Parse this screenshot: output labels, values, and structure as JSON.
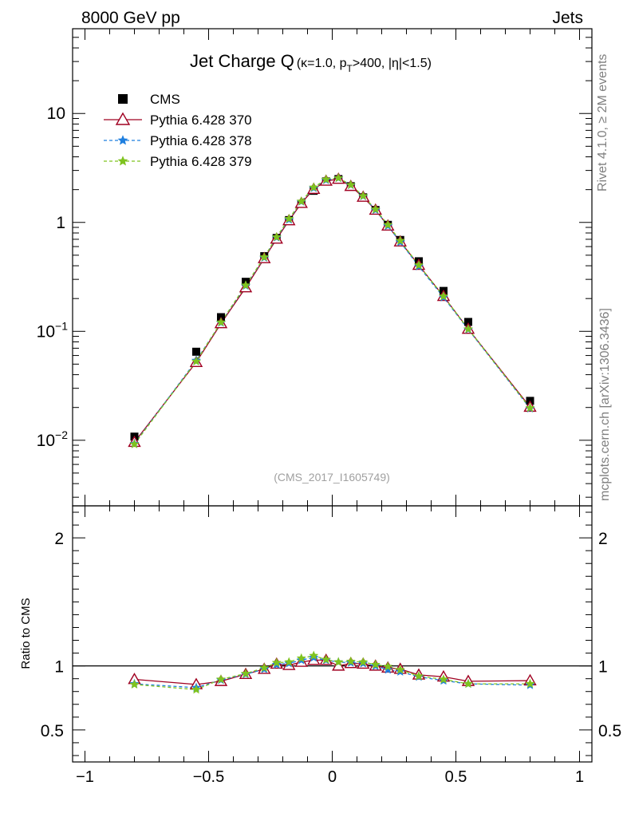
{
  "header": {
    "left": "8000 GeV pp",
    "right": "Jets"
  },
  "side_labels": {
    "rivet": "Rivet 4.1.0, ≥ 2M events",
    "mcplots": "mcplots.cern.ch [arXiv:1306.3436]"
  },
  "colors": {
    "cms": "#000000",
    "p370": "#a00021",
    "p378": "#1f7fdf",
    "p379": "#7fc31f"
  },
  "chart_data": [
    {
      "type": "scatter",
      "panel": "main",
      "title": "Jet Charge Q",
      "title_sub": {
        "k": "(κ=1.0, p",
        "T": "T",
        "rest": ">400, |η|<1.5)"
      },
      "watermark": "(CMS_2017_I1605749)",
      "yscale": "log",
      "xlim": [
        -1.05,
        1.05
      ],
      "ylim": [
        0.0025,
        60
      ],
      "y_ticks": [
        {
          "value": 0.01,
          "base": "10",
          "exp": "−2"
        },
        {
          "value": 0.1,
          "base": "10",
          "exp": "−1"
        },
        {
          "value": 1,
          "base": "1",
          "exp": ""
        },
        {
          "value": 10,
          "base": "10",
          "exp": ""
        }
      ],
      "x": [
        -0.8,
        -0.55,
        -0.45,
        -0.35,
        -0.275,
        -0.225,
        -0.175,
        -0.125,
        -0.075,
        -0.025,
        0.025,
        0.075,
        0.125,
        0.175,
        0.225,
        0.275,
        0.35,
        0.45,
        0.55,
        0.8
      ],
      "legend_position": "top-left",
      "series": [
        {
          "name": "CMS",
          "marker": "square",
          "values": [
            0.0108,
            0.065,
            0.135,
            0.285,
            0.49,
            0.72,
            1.05,
            1.48,
            1.95,
            2.38,
            2.5,
            2.15,
            1.7,
            1.3,
            0.95,
            0.69,
            0.44,
            0.235,
            0.122,
            0.023
          ]
        },
        {
          "name": "Pythia 6.428 370",
          "marker": "triangle",
          "line": "solid",
          "values": [
            0.0096,
            0.052,
            0.118,
            0.252,
            0.467,
            0.705,
            1.04,
            1.5,
            2.02,
            2.4,
            2.5,
            2.15,
            1.71,
            1.3,
            0.93,
            0.665,
            0.405,
            0.21,
            0.105,
            0.0202
          ]
        },
        {
          "name": "Pythia 6.428 378",
          "marker": "star",
          "line": "dashed",
          "values": [
            0.0093,
            0.054,
            0.12,
            0.262,
            0.475,
            0.727,
            1.06,
            1.55,
            2.07,
            2.45,
            2.55,
            2.2,
            1.74,
            1.3,
            0.93,
            0.66,
            0.395,
            0.205,
            0.104,
            0.0196
          ]
        },
        {
          "name": "Pythia 6.428 379",
          "marker": "star",
          "line": "dashed",
          "values": [
            0.0092,
            0.053,
            0.121,
            0.265,
            0.48,
            0.735,
            1.08,
            1.56,
            2.1,
            2.48,
            2.56,
            2.21,
            1.75,
            1.32,
            0.95,
            0.68,
            0.405,
            0.21,
            0.105,
            0.0198
          ]
        }
      ]
    },
    {
      "type": "line",
      "panel": "ratio",
      "ylabel": "Ratio to CMS",
      "xlabel": "",
      "xlim": [
        -1.05,
        1.05
      ],
      "ylim": [
        0.25,
        2.25
      ],
      "y_ticks": [
        0.5,
        1,
        2
      ],
      "y_tick_labels": [
        "0.5",
        "1",
        "2"
      ],
      "x_ticks": [
        -1,
        -0.5,
        0,
        0.5,
        1
      ],
      "x_tick_labels": [
        "−1",
        "−0.5",
        "0",
        "0.5",
        "1"
      ],
      "reference_line": 1,
      "x": [
        -0.8,
        -0.55,
        -0.45,
        -0.35,
        -0.275,
        -0.225,
        -0.175,
        -0.125,
        -0.075,
        -0.025,
        0.025,
        0.075,
        0.125,
        0.175,
        0.225,
        0.275,
        0.35,
        0.45,
        0.55,
        0.8
      ],
      "series": [
        {
          "name": "Pythia 6.428 370",
          "values": [
            0.895,
            0.855,
            0.88,
            0.935,
            0.975,
            1.015,
            1.005,
            1.03,
            1.045,
            1.045,
            1.0,
            1.02,
            1.015,
            1.0,
            0.985,
            0.975,
            0.93,
            0.915,
            0.88,
            0.885
          ]
        },
        {
          "name": "Pythia 6.428 378",
          "values": [
            0.86,
            0.83,
            0.89,
            0.935,
            0.975,
            1.01,
            1.02,
            1.045,
            1.065,
            1.045,
            1.03,
            1.025,
            1.02,
            1.0,
            0.97,
            0.955,
            0.915,
            0.885,
            0.86,
            0.85
          ]
        },
        {
          "name": "Pythia 6.428 379",
          "values": [
            0.855,
            0.815,
            0.895,
            0.94,
            0.985,
            1.025,
            1.03,
            1.06,
            1.08,
            1.05,
            1.03,
            1.035,
            1.03,
            1.01,
            0.995,
            0.97,
            0.92,
            0.895,
            0.86,
            0.86
          ]
        }
      ]
    }
  ]
}
